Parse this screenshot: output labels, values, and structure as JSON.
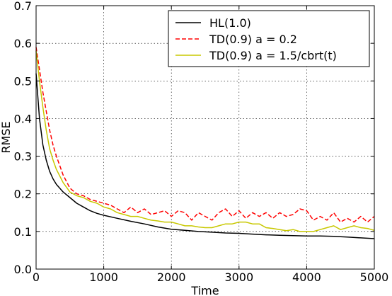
{
  "chart_data": {
    "type": "line",
    "title": "",
    "xlabel": "Time",
    "ylabel": "RMSE",
    "xlim": [
      0,
      5000
    ],
    "ylim": [
      0,
      0.7
    ],
    "xticks": [
      0,
      1000,
      2000,
      3000,
      4000,
      5000
    ],
    "yticks": [
      0.0,
      0.1,
      0.2,
      0.3,
      0.4,
      0.5,
      0.6,
      0.7
    ],
    "xtick_labels": [
      "0",
      "1000",
      "2000",
      "3000",
      "4000",
      "5000"
    ],
    "ytick_labels": [
      "0.0",
      "0.1",
      "0.2",
      "0.3",
      "0.4",
      "0.5",
      "0.6",
      "0.7"
    ],
    "grid": true,
    "legend_position": "top-right",
    "series": [
      {
        "name": "HL(1.0)",
        "color": "#000000",
        "dash": "solid",
        "x": [
          0,
          50,
          100,
          150,
          200,
          250,
          300,
          400,
          500,
          600,
          700,
          800,
          900,
          1000,
          1200,
          1400,
          1600,
          1800,
          2000,
          2200,
          2400,
          2600,
          2800,
          3000,
          3200,
          3400,
          3600,
          3800,
          4000,
          4200,
          4400,
          4600,
          4800,
          5000
        ],
        "y": [
          0.52,
          0.4,
          0.33,
          0.29,
          0.26,
          0.24,
          0.225,
          0.205,
          0.19,
          0.175,
          0.165,
          0.155,
          0.148,
          0.143,
          0.135,
          0.127,
          0.12,
          0.112,
          0.106,
          0.103,
          0.1,
          0.098,
          0.096,
          0.095,
          0.093,
          0.091,
          0.09,
          0.089,
          0.088,
          0.088,
          0.087,
          0.085,
          0.083,
          0.081
        ]
      },
      {
        "name": "TD(0.9) a = 0.2",
        "color": "#ff0000",
        "dash": "dashed",
        "x": [
          0,
          50,
          100,
          150,
          200,
          250,
          300,
          400,
          500,
          600,
          700,
          800,
          900,
          1000,
          1100,
          1200,
          1300,
          1400,
          1500,
          1600,
          1700,
          1800,
          1900,
          2000,
          2100,
          2200,
          2300,
          2400,
          2500,
          2600,
          2700,
          2800,
          2900,
          3000,
          3100,
          3200,
          3300,
          3400,
          3500,
          3600,
          3700,
          3800,
          3900,
          4000,
          4100,
          4200,
          4300,
          4400,
          4500,
          4600,
          4700,
          4800,
          4900,
          5000
        ],
        "y": [
          0.59,
          0.53,
          0.47,
          0.42,
          0.37,
          0.33,
          0.3,
          0.25,
          0.215,
          0.2,
          0.195,
          0.185,
          0.18,
          0.175,
          0.17,
          0.16,
          0.15,
          0.165,
          0.15,
          0.16,
          0.145,
          0.15,
          0.155,
          0.14,
          0.155,
          0.15,
          0.13,
          0.15,
          0.14,
          0.13,
          0.15,
          0.16,
          0.14,
          0.155,
          0.135,
          0.15,
          0.14,
          0.15,
          0.135,
          0.15,
          0.14,
          0.145,
          0.16,
          0.155,
          0.13,
          0.14,
          0.13,
          0.15,
          0.125,
          0.135,
          0.125,
          0.14,
          0.125,
          0.14
        ]
      },
      {
        "name": "TD(0.9) a = 1.5/cbrt(t)",
        "color": "#c8c800",
        "dash": "solid",
        "x": [
          0,
          50,
          100,
          150,
          200,
          250,
          300,
          400,
          500,
          600,
          700,
          800,
          900,
          1000,
          1100,
          1200,
          1300,
          1400,
          1500,
          1600,
          1700,
          1800,
          1900,
          2000,
          2100,
          2200,
          2300,
          2400,
          2500,
          2600,
          2700,
          2800,
          2900,
          3000,
          3100,
          3200,
          3300,
          3400,
          3500,
          3600,
          3700,
          3800,
          3900,
          4000,
          4100,
          4200,
          4300,
          4400,
          4500,
          4600,
          4700,
          4800,
          4900,
          5000
        ],
        "y": [
          0.58,
          0.5,
          0.43,
          0.37,
          0.32,
          0.29,
          0.265,
          0.23,
          0.205,
          0.195,
          0.19,
          0.18,
          0.175,
          0.165,
          0.16,
          0.15,
          0.145,
          0.14,
          0.14,
          0.135,
          0.13,
          0.128,
          0.125,
          0.125,
          0.12,
          0.115,
          0.115,
          0.112,
          0.11,
          0.11,
          0.115,
          0.12,
          0.12,
          0.125,
          0.125,
          0.12,
          0.12,
          0.11,
          0.108,
          0.105,
          0.102,
          0.105,
          0.1,
          0.1,
          0.1,
          0.105,
          0.11,
          0.115,
          0.105,
          0.11,
          0.115,
          0.11,
          0.108,
          0.103
        ]
      }
    ]
  }
}
